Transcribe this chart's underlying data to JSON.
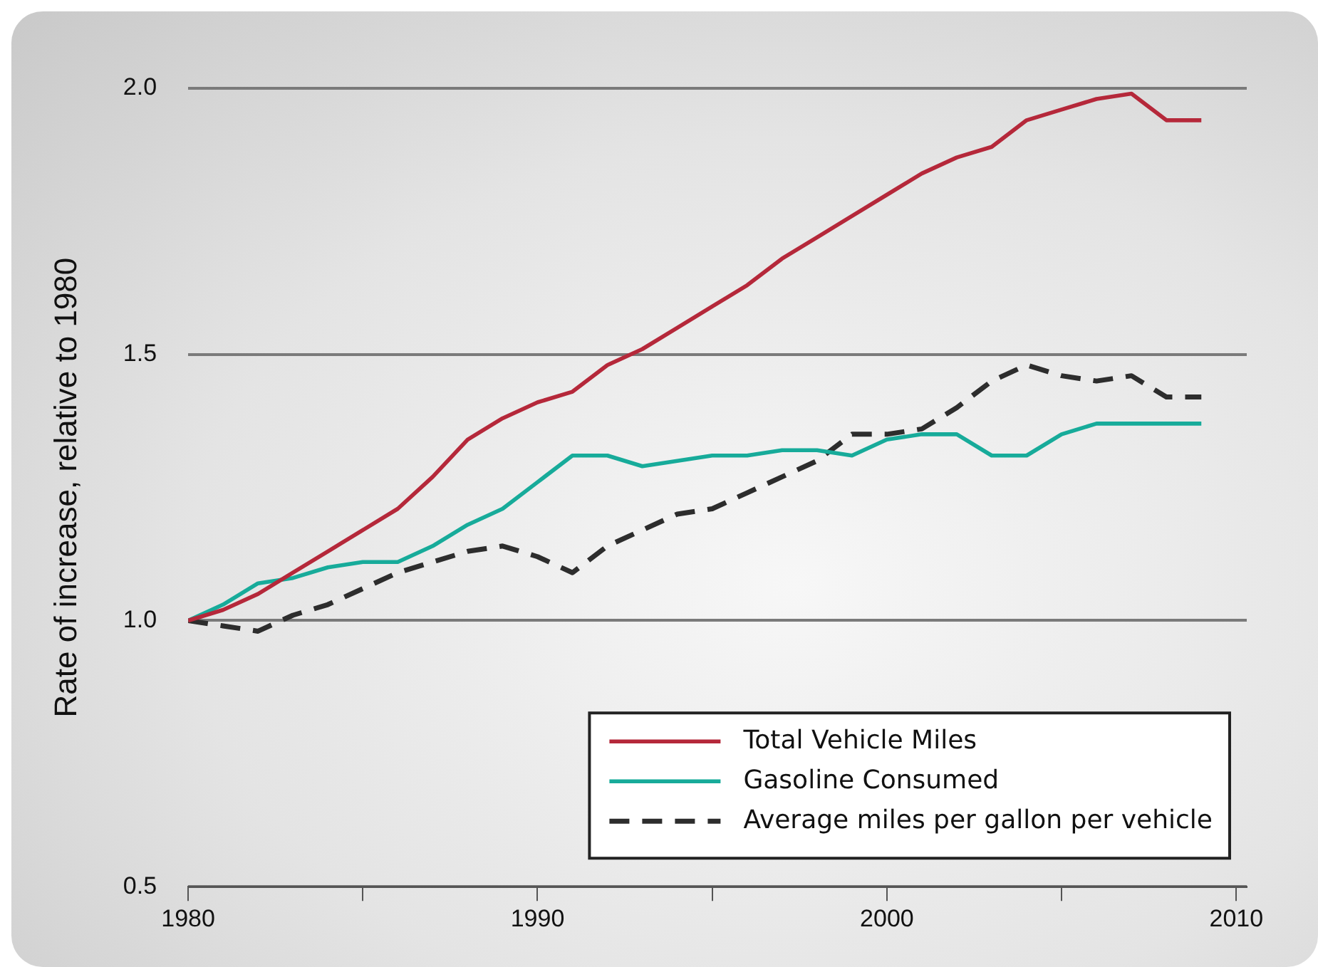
{
  "chart_data": {
    "type": "line",
    "ylabel": "Rate of increase, relative to 1980",
    "x": [
      1980,
      1981,
      1982,
      1983,
      1984,
      1985,
      1986,
      1987,
      1988,
      1989,
      1990,
      1991,
      1992,
      1993,
      1994,
      1995,
      1996,
      1997,
      1998,
      1999,
      2000,
      2001,
      2002,
      2003,
      2004,
      2005,
      2006,
      2007,
      2008,
      2009
    ],
    "series": [
      {
        "name": "Total Vehicle Miles",
        "color": "#b5283a",
        "line_style": "solid",
        "values": [
          1.0,
          1.02,
          1.05,
          1.09,
          1.13,
          1.17,
          1.21,
          1.27,
          1.34,
          1.38,
          1.41,
          1.43,
          1.48,
          1.51,
          1.55,
          1.59,
          1.63,
          1.68,
          1.72,
          1.76,
          1.8,
          1.84,
          1.87,
          1.89,
          1.94,
          1.96,
          1.98,
          1.99,
          1.94,
          1.94
        ]
      },
      {
        "name": "Gasoline Consumed",
        "color": "#17ab9a",
        "line_style": "solid",
        "values": [
          1.0,
          1.03,
          1.07,
          1.08,
          1.1,
          1.11,
          1.11,
          1.14,
          1.18,
          1.21,
          1.26,
          1.31,
          1.31,
          1.29,
          1.3,
          1.31,
          1.31,
          1.32,
          1.32,
          1.31,
          1.34,
          1.35,
          1.35,
          1.31,
          1.31,
          1.35,
          1.37,
          1.37,
          1.37,
          1.37
        ]
      },
      {
        "name": "Average miles per gallon per vehicle",
        "color": "#2d2d2d",
        "line_style": "dashed",
        "values": [
          1.0,
          0.99,
          0.98,
          1.01,
          1.03,
          1.06,
          1.09,
          1.11,
          1.13,
          1.14,
          1.12,
          1.09,
          1.14,
          1.17,
          1.2,
          1.21,
          1.24,
          1.27,
          1.3,
          1.35,
          1.35,
          1.36,
          1.4,
          1.45,
          1.48,
          1.46,
          1.45,
          1.46,
          1.42,
          1.42
        ]
      }
    ],
    "xlim": [
      1980,
      2010.3
    ],
    "xticks": [
      1980,
      {
        "value": 1985,
        "label": null
      },
      1990,
      {
        "value": 1995,
        "label": null
      },
      2000,
      {
        "value": 2005,
        "label": null
      },
      2010
    ],
    "ylim": [
      0.5,
      2.0
    ],
    "yticks": [
      {
        "value": 0.5,
        "label": "0.5"
      },
      {
        "value": 1,
        "label": "1.0"
      },
      {
        "value": 1.5,
        "label": "1.5"
      },
      {
        "value": 2,
        "label": "2.0"
      }
    ],
    "grid": "y",
    "legend": "bottom right",
    "marker": "none"
  }
}
